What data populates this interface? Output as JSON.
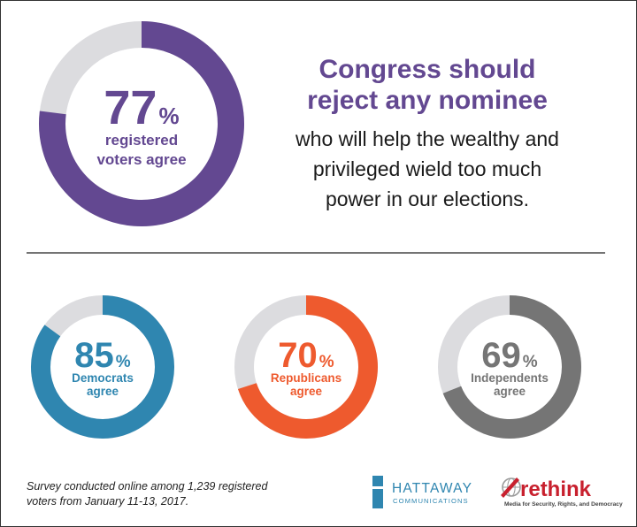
{
  "colors": {
    "purple": "#634891",
    "blue": "#2f86b0",
    "orange": "#ee5a2e",
    "gray": "#757575",
    "track": "#dcdcdf",
    "rethink_red": "#c8202e"
  },
  "headline": {
    "bold_line1": "Congress should",
    "bold_line2": "reject any nominee",
    "body_line1": "who will help the wealthy and",
    "body_line2": "privileged wield too much",
    "body_line3": "power in our elections."
  },
  "chart_data": [
    {
      "type": "pie",
      "style": "donut",
      "value": 77,
      "total": 100,
      "label_value": "77",
      "label_unit": "%",
      "label_line1": "registered",
      "label_line2": "voters agree",
      "color": "#634891"
    },
    {
      "type": "pie",
      "style": "donut",
      "value": 85,
      "total": 100,
      "label_value": "85",
      "label_unit": "%",
      "label_line1": "Democrats",
      "label_line2": "agree",
      "color": "#2f86b0"
    },
    {
      "type": "pie",
      "style": "donut",
      "value": 70,
      "total": 100,
      "label_value": "70",
      "label_unit": "%",
      "label_line1": "Republicans",
      "label_line2": "agree",
      "color": "#ee5a2e"
    },
    {
      "type": "pie",
      "style": "donut",
      "value": 69,
      "total": 100,
      "label_value": "69",
      "label_unit": "%",
      "label_line1": "Independents",
      "label_line2": "agree",
      "color": "#757575"
    }
  ],
  "footnote": {
    "line1": "Survey conducted online among 1,239 registered",
    "line2": "voters from January 11-13, 2017."
  },
  "logos": {
    "hattaway_name": "HATTAWAY",
    "hattaway_sub": "COMMUNICATIONS",
    "rethink_name": "rethink",
    "rethink_tagline": "Media for Security, Rights, and Democracy"
  }
}
